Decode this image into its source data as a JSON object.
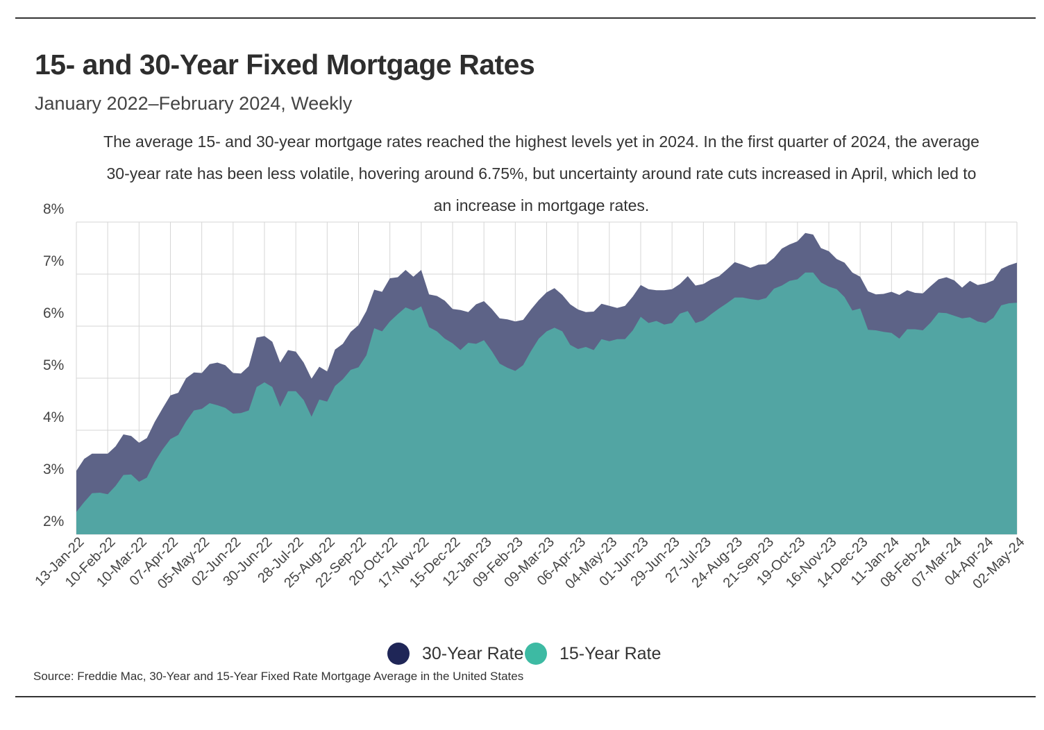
{
  "chart_data": {
    "type": "area",
    "title": "15- and 30-Year Fixed Mortgage Rates",
    "subtitle": "January 2022–February 2024, Weekly",
    "description": "The average 15- and 30-year mortgage rates reached the highest levels yet in 2024. In the first quarter of 2024, the average 30-year rate has been less volatile, hovering around 6.75%, but uncertainty around rate cuts increased in April, which led to an increase in mortgage rates.",
    "source": "Source:  Freddie Mac, 30-Year  and 15-Year Fixed Rate Mortgage Average in the United States",
    "ylim": [
      2,
      8
    ],
    "y_ticks": [
      2,
      3,
      4,
      5,
      6,
      7,
      8
    ],
    "y_tick_labels": [
      "2%",
      "3%",
      "4%",
      "5%",
      "6%",
      "7%",
      "8%"
    ],
    "grid": true,
    "legend_position": "bottom-center",
    "x_tick_labels": [
      "13-Jan-22",
      "10-Feb-22",
      "10-Mar-22",
      "07-Apr-22",
      "05-May-22",
      "02-Jun-22",
      "30-Jun-22",
      "28-Jul-22",
      "25-Aug-22",
      "22-Sep-22",
      "20-Oct-22",
      "17-Nov-22",
      "15-Dec-22",
      "12-Jan-23",
      "09-Feb-23",
      "09-Mar-23",
      "06-Apr-23",
      "04-May-23",
      "01-Jun-23",
      "29-Jun-23",
      "27-Jul-23",
      "24-Aug-23",
      "21-Sep-23",
      "19-Oct-23",
      "16-Nov-23",
      "14-Dec-23",
      "11-Jan-24",
      "08-Feb-24",
      "07-Mar-24",
      "04-Apr-24",
      "02-May-24"
    ],
    "series": [
      {
        "name": "30-Year Rate",
        "color": "#1f2657",
        "fill": "#5d6387",
        "values": [
          3.22,
          3.45,
          3.55,
          3.55,
          3.55,
          3.69,
          3.92,
          3.89,
          3.76,
          3.85,
          4.16,
          4.42,
          4.67,
          4.72,
          5.0,
          5.11,
          5.1,
          5.27,
          5.3,
          5.25,
          5.1,
          5.09,
          5.23,
          5.78,
          5.81,
          5.7,
          5.3,
          5.54,
          5.51,
          5.3,
          4.99,
          5.22,
          5.13,
          5.55,
          5.66,
          5.89,
          6.02,
          6.29,
          6.7,
          6.66,
          6.92,
          6.94,
          7.08,
          6.95,
          7.08,
          6.61,
          6.58,
          6.49,
          6.33,
          6.31,
          6.27,
          6.42,
          6.48,
          6.33,
          6.15,
          6.13,
          6.09,
          6.12,
          6.32,
          6.5,
          6.65,
          6.73,
          6.6,
          6.42,
          6.32,
          6.27,
          6.28,
          6.43,
          6.39,
          6.35,
          6.39,
          6.57,
          6.79,
          6.71,
          6.69,
          6.69,
          6.71,
          6.81,
          6.96,
          6.78,
          6.81,
          6.9,
          6.96,
          7.09,
          7.23,
          7.18,
          7.12,
          7.18,
          7.19,
          7.31,
          7.49,
          7.57,
          7.63,
          7.79,
          7.76,
          7.5,
          7.44,
          7.29,
          7.22,
          7.03,
          6.95,
          6.67,
          6.61,
          6.62,
          6.66,
          6.6,
          6.69,
          6.64,
          6.63,
          6.77,
          6.9,
          6.94,
          6.88,
          6.74,
          6.87,
          6.79,
          6.82,
          6.88,
          7.1,
          7.17,
          7.22
        ]
      },
      {
        "name": "15-Year Rate",
        "color": "#3dbaa3",
        "fill": "#52a5a3",
        "values": [
          2.43,
          2.62,
          2.79,
          2.8,
          2.77,
          2.93,
          3.14,
          3.15,
          3.01,
          3.09,
          3.39,
          3.63,
          3.83,
          3.91,
          4.17,
          4.38,
          4.41,
          4.52,
          4.48,
          4.43,
          4.32,
          4.33,
          4.38,
          4.83,
          4.92,
          4.83,
          4.45,
          4.75,
          4.75,
          4.58,
          4.26,
          4.59,
          4.55,
          4.85,
          4.98,
          5.16,
          5.21,
          5.44,
          5.96,
          5.9,
          6.09,
          6.23,
          6.36,
          6.3,
          6.38,
          5.98,
          5.9,
          5.76,
          5.67,
          5.54,
          5.68,
          5.66,
          5.73,
          5.52,
          5.28,
          5.2,
          5.14,
          5.25,
          5.52,
          5.76,
          5.9,
          5.97,
          5.9,
          5.64,
          5.56,
          5.6,
          5.54,
          5.75,
          5.71,
          5.75,
          5.75,
          5.92,
          6.18,
          6.06,
          6.1,
          6.03,
          6.06,
          6.24,
          6.29,
          6.06,
          6.11,
          6.23,
          6.34,
          6.44,
          6.55,
          6.55,
          6.52,
          6.5,
          6.54,
          6.72,
          6.78,
          6.87,
          6.9,
          7.03,
          7.03,
          6.84,
          6.76,
          6.71,
          6.56,
          6.3,
          6.34,
          5.93,
          5.92,
          5.89,
          5.87,
          5.76,
          5.94,
          5.94,
          5.92,
          6.07,
          6.26,
          6.25,
          6.2,
          6.15,
          6.17,
          6.09,
          6.06,
          6.16,
          6.4,
          6.44,
          6.45
        ]
      }
    ]
  }
}
